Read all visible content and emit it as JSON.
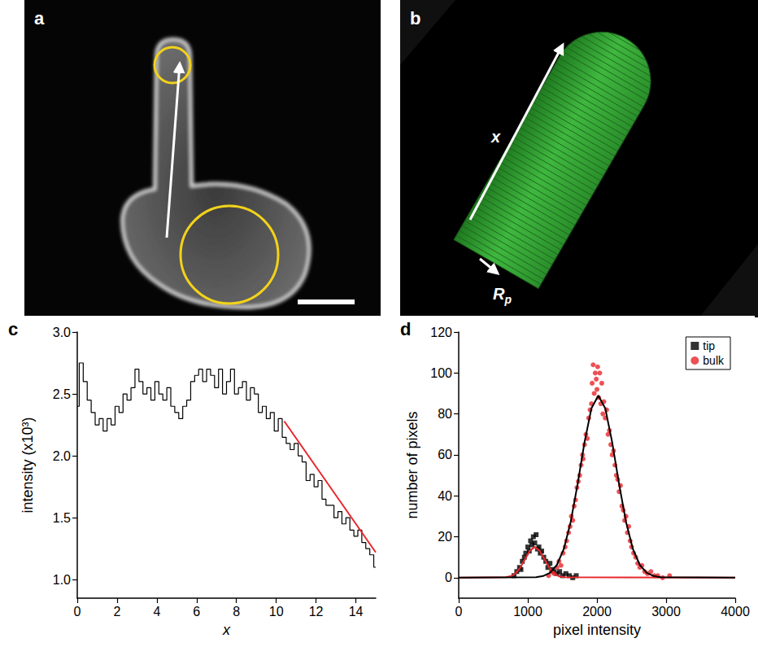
{
  "panels": [
    {
      "label": "a"
    },
    {
      "label": "b",
      "annotations": {
        "length": "x",
        "radius": {
          "text": "R",
          "subscript": "p"
        }
      }
    }
  ],
  "chart_data": [
    {
      "label": "c",
      "type": "line",
      "x_label": "x",
      "y_label": "intensity (x10³)",
      "xlim": [
        0,
        15
      ],
      "xticks": [
        0,
        2,
        4,
        6,
        8,
        10,
        12,
        14
      ],
      "ylim": [
        0.85,
        3.0
      ],
      "yticks": [
        {
          "value": 1,
          "label": "1.0"
        },
        {
          "value": 1.5,
          "label": "1.5"
        },
        {
          "value": 2,
          "label": "2.0"
        },
        {
          "value": 2.5,
          "label": "2.5"
        },
        {
          "value": 3,
          "label": "3.0"
        }
      ],
      "series": [
        {
          "type": "line",
          "line_style": "step",
          "color": "#000000",
          "x": [
            0,
            0.2,
            0.4,
            0.6,
            0.8,
            1.0,
            1.2,
            1.4,
            1.6,
            1.8,
            2.0,
            2.2,
            2.4,
            2.6,
            2.8,
            3.0,
            3.2,
            3.4,
            3.6,
            3.8,
            4.0,
            4.2,
            4.4,
            4.6,
            4.8,
            5.0,
            5.2,
            5.4,
            5.6,
            5.8,
            6.0,
            6.2,
            6.4,
            6.6,
            6.8,
            7.0,
            7.2,
            7.4,
            7.6,
            7.8,
            8.0,
            8.2,
            8.4,
            8.6,
            8.8,
            9.0,
            9.2,
            9.4,
            9.6,
            9.8,
            10.0,
            10.2,
            10.4,
            10.6,
            10.8,
            11.0,
            11.2,
            11.4,
            11.6,
            11.8,
            12.0,
            12.2,
            12.4,
            12.6,
            12.8,
            13.0,
            13.2,
            13.4,
            13.6,
            13.8,
            14.0,
            14.2,
            14.4,
            14.6,
            14.8,
            15.0
          ],
          "values": [
            2.4,
            2.75,
            2.6,
            2.45,
            2.35,
            2.25,
            2.3,
            2.2,
            2.3,
            2.25,
            2.4,
            2.35,
            2.5,
            2.45,
            2.55,
            2.7,
            2.6,
            2.5,
            2.55,
            2.45,
            2.6,
            2.5,
            2.45,
            2.55,
            2.4,
            2.35,
            2.3,
            2.4,
            2.45,
            2.6,
            2.65,
            2.7,
            2.6,
            2.7,
            2.65,
            2.55,
            2.7,
            2.5,
            2.6,
            2.7,
            2.5,
            2.55,
            2.6,
            2.45,
            2.55,
            2.5,
            2.35,
            2.4,
            2.3,
            2.35,
            2.2,
            2.3,
            2.15,
            2.1,
            2.05,
            2.1,
            2.0,
            1.95,
            1.8,
            1.85,
            1.75,
            1.8,
            1.65,
            1.6,
            1.6,
            1.5,
            1.55,
            1.45,
            1.5,
            1.4,
            1.35,
            1.4,
            1.3,
            1.25,
            1.2,
            1.1
          ]
        },
        {
          "type": "line",
          "line_style": "solid",
          "color": "#e8262b",
          "x": [
            10.4,
            15.0
          ],
          "values": [
            2.28,
            1.22
          ]
        }
      ]
    },
    {
      "label": "d",
      "type": "scatter",
      "x_label": "pixel intensity",
      "y_label": "number of pixels",
      "xlim": [
        0,
        4000
      ],
      "xticks": [
        0,
        1000,
        2000,
        3000,
        4000
      ],
      "ylim": [
        -10,
        120
      ],
      "yticks": [
        0,
        20,
        40,
        60,
        80,
        100,
        120
      ],
      "legend": "upper right",
      "series": [
        {
          "name": "tip",
          "type": "scatter",
          "marker": "square",
          "color": "#000000",
          "x": [
            800,
            840,
            880,
            900,
            920,
            950,
            970,
            1000,
            1020,
            1040,
            1060,
            1080,
            1100,
            1120,
            1140,
            1160,
            1180,
            1200,
            1230,
            1260,
            1290,
            1320,
            1350,
            1380,
            1420,
            1460,
            1500,
            1550,
            1600,
            1650,
            1700
          ],
          "values": [
            1,
            3,
            5,
            4,
            8,
            10,
            12,
            15,
            13,
            18,
            16,
            20,
            17,
            21,
            14,
            15,
            12,
            13,
            10,
            8,
            5,
            7,
            4,
            3,
            2,
            3,
            1,
            2,
            1,
            0,
            1
          ]
        },
        {
          "name": "bulk",
          "type": "scatter",
          "marker": "circle",
          "color": "#e8262b",
          "x": [
            1300,
            1340,
            1380,
            1420,
            1450,
            1480,
            1510,
            1540,
            1560,
            1590,
            1610,
            1630,
            1650,
            1670,
            1690,
            1710,
            1730,
            1750,
            1770,
            1790,
            1800,
            1820,
            1840,
            1860,
            1880,
            1900,
            1920,
            1930,
            1945,
            1960,
            1975,
            1990,
            2000,
            2010,
            2025,
            2040,
            2055,
            2070,
            2085,
            2100,
            2120,
            2140,
            2160,
            2180,
            2200,
            2220,
            2240,
            2260,
            2280,
            2300,
            2320,
            2340,
            2360,
            2380,
            2400,
            2420,
            2440,
            2460,
            2480,
            2500,
            2530,
            2560,
            2590,
            2620,
            2650,
            2690,
            2730,
            2780,
            2830,
            2880,
            2950,
            3050
          ],
          "values": [
            1,
            3,
            2,
            5,
            8,
            6,
            12,
            15,
            18,
            22,
            25,
            30,
            28,
            35,
            38,
            44,
            47,
            50,
            55,
            60,
            58,
            65,
            70,
            68,
            78,
            82,
            85,
            95,
            104,
            90,
            100,
            97,
            92,
            103,
            88,
            100,
            85,
            95,
            80,
            86,
            78,
            82,
            70,
            72,
            65,
            60,
            62,
            55,
            50,
            48,
            42,
            45,
            35,
            33,
            28,
            30,
            22,
            25,
            18,
            15,
            12,
            10,
            7,
            5,
            6,
            3,
            2,
            3,
            1,
            1,
            0,
            1
          ]
        },
        {
          "type": "line",
          "line_style": "solid",
          "color": "#e8262b",
          "x": [
            0,
            680,
            750,
            820,
            890,
            960,
            1030,
            1100,
            1170,
            1240,
            1310,
            1380,
            1450,
            1520,
            4000
          ],
          "values": [
            0,
            0.2,
            0.7,
            2.0,
            4.9,
            9.1,
            13.2,
            15,
            13.2,
            9.1,
            4.9,
            2.0,
            0.7,
            0.2,
            0
          ]
        },
        {
          "type": "line",
          "line_style": "solid",
          "color": "#000000",
          "x": [
            0,
            1120,
            1220,
            1320,
            1420,
            1520,
            1620,
            1720,
            1820,
            1920,
            2020,
            2120,
            2220,
            2320,
            2420,
            2520,
            2620,
            2720,
            2820,
            2920,
            4000
          ],
          "values": [
            0,
            0.2,
            0.8,
            2.4,
            6.2,
            14.0,
            27.3,
            45.7,
            66.2,
            82.7,
            89,
            82.7,
            66.2,
            45.7,
            27.3,
            14.0,
            6.2,
            2.4,
            0.8,
            0.2,
            0
          ]
        }
      ]
    }
  ]
}
